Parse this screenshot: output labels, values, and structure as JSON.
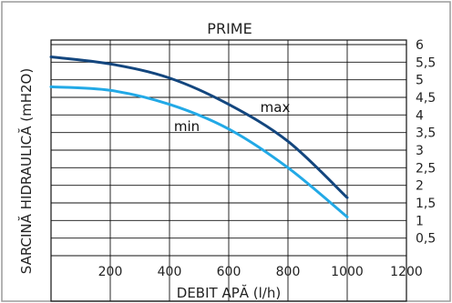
{
  "chart_data": {
    "type": "line",
    "title": "PRIME",
    "xlabel": "DEBIT APĂ (l/h)",
    "ylabel": "SARCINĂ HIDRAULICĂ (mH2O)",
    "xlim": [
      0,
      1200
    ],
    "ylim": [
      0,
      6
    ],
    "x_ticks": [
      "200",
      "400",
      "600",
      "800",
      "1000",
      "1200"
    ],
    "y_ticks": [
      "0,5",
      "1",
      "1,5",
      "2",
      "2,5",
      "3",
      "3,5",
      "4",
      "4,5",
      "5",
      "5,5",
      "6"
    ],
    "grid": true,
    "series": [
      {
        "name": "max",
        "color": "#13467e",
        "points": [
          [
            0,
            5.65
          ],
          [
            200,
            5.45
          ],
          [
            400,
            5.05
          ],
          [
            600,
            4.3
          ],
          [
            800,
            3.25
          ],
          [
            1000,
            1.65
          ]
        ]
      },
      {
        "name": "min",
        "color": "#22a9e6",
        "points": [
          [
            0,
            4.8
          ],
          [
            200,
            4.7
          ],
          [
            400,
            4.3
          ],
          [
            600,
            3.6
          ],
          [
            800,
            2.5
          ],
          [
            1000,
            1.1
          ]
        ]
      }
    ]
  }
}
